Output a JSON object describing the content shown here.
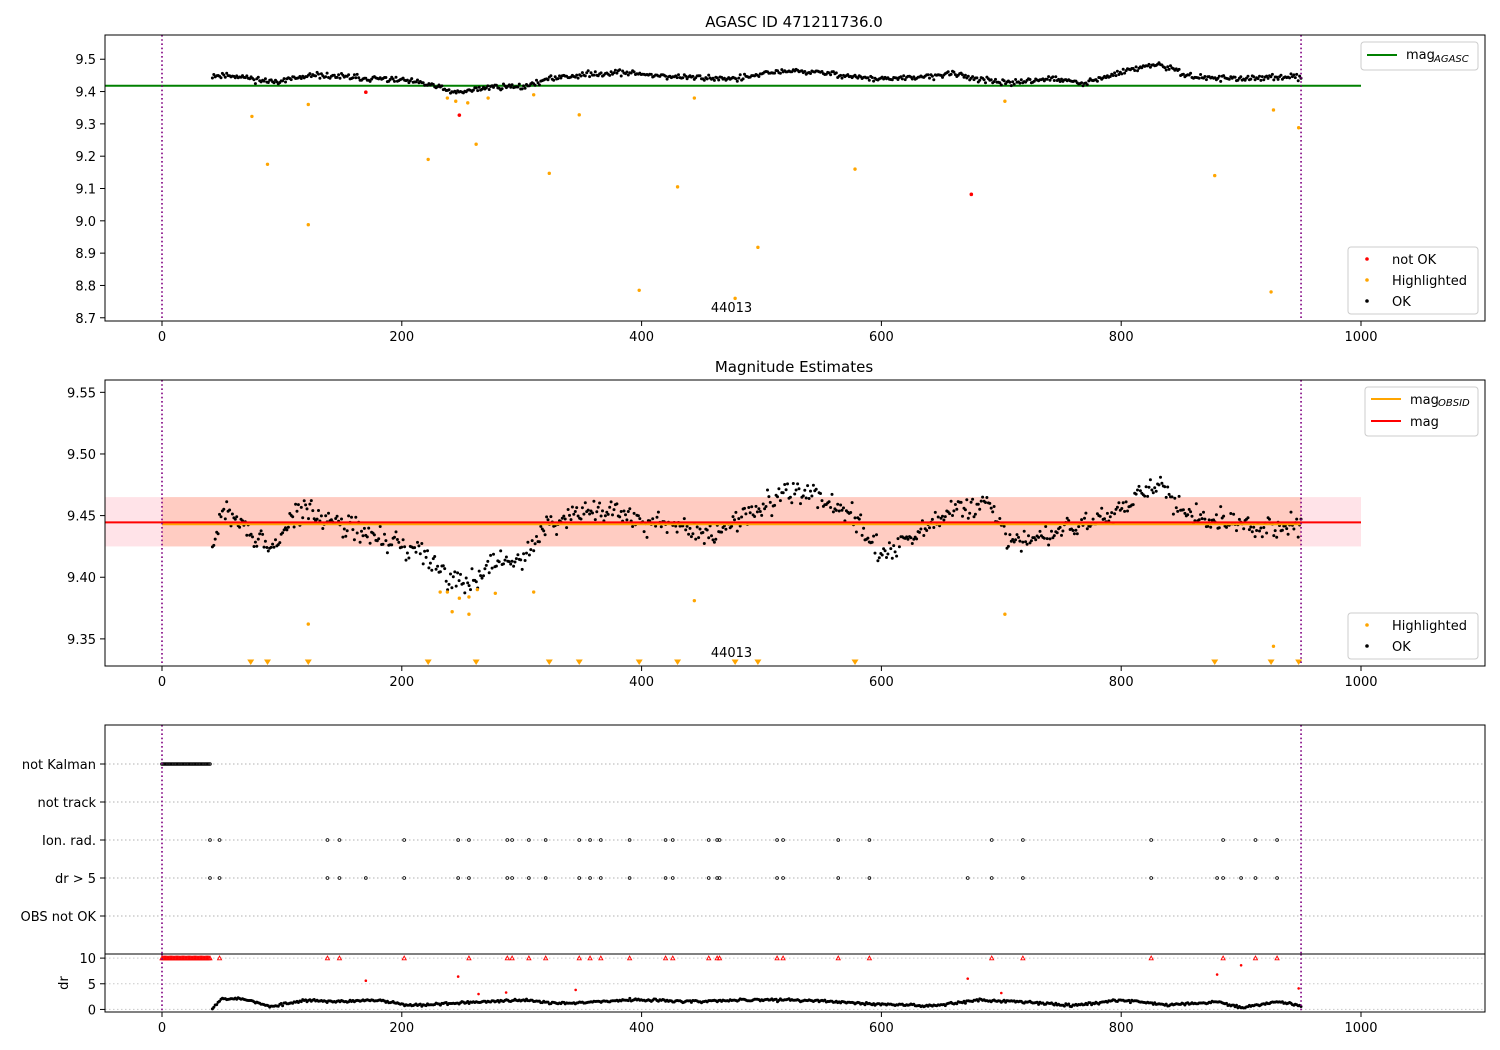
{
  "figure": {
    "title": "AGASC ID 471211736.0"
  },
  "chart_data": [
    {
      "id": "top",
      "type": "scatter",
      "title": "AGASC ID 471211736.0",
      "xlim": [
        -47,
        1010
      ],
      "ylim": [
        8.69,
        9.575
      ],
      "xticks": [
        0,
        200,
        400,
        600,
        800,
        1000
      ],
      "yticks": [
        8.7,
        8.8,
        8.9,
        9.0,
        9.1,
        9.2,
        9.3,
        9.4,
        9.5
      ],
      "ytick_labels": [
        "8.7",
        "8.8",
        "8.9",
        "9.0",
        "9.1",
        "9.2",
        "9.3",
        "9.4",
        "9.5"
      ],
      "obsid_label": "44013",
      "obsid_label_x": 475,
      "vlines_x": [
        0,
        950
      ],
      "reference_line": {
        "name": "mag_AGASC",
        "y": 9.418,
        "x_range": [
          -47,
          1000
        ],
        "color": "#008000"
      },
      "legend_upper": [
        {
          "label": "mag",
          "subscript": "AGASC",
          "color": "#008000"
        }
      ],
      "legend_lower": [
        {
          "label": "not OK",
          "color": "#ff0000"
        },
        {
          "label": "Highlighted",
          "color": "#ffa500"
        },
        {
          "label": "OK",
          "color": "#000000"
        }
      ],
      "ok_profile": {
        "x_range": [
          42,
          950
        ],
        "anchors": [
          [
            42,
            9.45
          ],
          [
            60,
            9.45
          ],
          [
            90,
            9.43
          ],
          [
            130,
            9.45
          ],
          [
            200,
            9.435
          ],
          [
            225,
            9.42
          ],
          [
            245,
            9.395
          ],
          [
            275,
            9.415
          ],
          [
            300,
            9.415
          ],
          [
            330,
            9.445
          ],
          [
            380,
            9.46
          ],
          [
            430,
            9.445
          ],
          [
            480,
            9.44
          ],
          [
            520,
            9.465
          ],
          [
            560,
            9.455
          ],
          [
            590,
            9.44
          ],
          [
            620,
            9.44
          ],
          [
            660,
            9.455
          ],
          [
            700,
            9.425
          ],
          [
            740,
            9.44
          ],
          [
            770,
            9.425
          ],
          [
            810,
            9.47
          ],
          [
            830,
            9.485
          ],
          [
            860,
            9.445
          ],
          [
            900,
            9.44
          ],
          [
            950,
            9.445
          ]
        ],
        "noise": 0.016,
        "count": 760,
        "color": "#000000"
      },
      "highlighted_points": [
        [
          75,
          9.323
        ],
        [
          88,
          9.175
        ],
        [
          122,
          9.36
        ],
        [
          122,
          8.988
        ],
        [
          222,
          9.19
        ],
        [
          238,
          9.38
        ],
        [
          245,
          9.37
        ],
        [
          255,
          9.365
        ],
        [
          262,
          9.237
        ],
        [
          272,
          9.38
        ],
        [
          310,
          9.39
        ],
        [
          323,
          9.147
        ],
        [
          348,
          9.328
        ],
        [
          398,
          8.785
        ],
        [
          430,
          9.105
        ],
        [
          444,
          9.38
        ],
        [
          478,
          8.76
        ],
        [
          497,
          8.918
        ],
        [
          578,
          9.16
        ],
        [
          703,
          9.37
        ],
        [
          878,
          9.14
        ],
        [
          925,
          8.78
        ],
        [
          927,
          9.343
        ],
        [
          948,
          9.288
        ]
      ],
      "not_ok_points": [
        [
          170,
          9.398
        ],
        [
          248,
          9.327
        ],
        [
          675,
          9.082
        ]
      ]
    },
    {
      "id": "mid",
      "type": "scatter",
      "title": "Magnitude Estimates",
      "xlim": [
        -47,
        1010
      ],
      "ylim": [
        9.328,
        9.56
      ],
      "xticks": [
        0,
        200,
        400,
        600,
        800,
        1000
      ],
      "yticks": [
        9.35,
        9.4,
        9.45,
        9.5,
        9.55
      ],
      "ytick_labels": [
        "9.35",
        "9.40",
        "9.45",
        "9.50",
        "9.55"
      ],
      "obsid_label": "44013",
      "obsid_label_x": 475,
      "vlines_x": [
        0,
        950
      ],
      "mag_line": {
        "y": 9.4445,
        "color": "#ff0000"
      },
      "mag_band": {
        "y": [
          9.425,
          9.465
        ],
        "x_range": [
          -47,
          1000
        ],
        "color": "#ffc0cb"
      },
      "mag_obsid_line": {
        "y": 9.443,
        "x_range": [
          0,
          950
        ],
        "color": "#ffa500"
      },
      "mag_obsid_band": {
        "y": [
          9.425,
          9.465
        ],
        "x_range": [
          0,
          950
        ],
        "color": "#ffa07a"
      },
      "legend_upper": [
        {
          "label": "mag",
          "subscript": "OBSID",
          "color": "#ffa500"
        },
        {
          "label": "mag",
          "subscript": "",
          "color": "#ff0000"
        }
      ],
      "legend_lower": [
        {
          "label": "Highlighted",
          "color": "#ffa500"
        },
        {
          "label": "OK",
          "color": "#000000"
        }
      ],
      "ok_profile": {
        "x_range": [
          42,
          950
        ],
        "anchors": [
          [
            42,
            9.42
          ],
          [
            50,
            9.455
          ],
          [
            70,
            9.44
          ],
          [
            90,
            9.42
          ],
          [
            110,
            9.45
          ],
          [
            125,
            9.455
          ],
          [
            145,
            9.445
          ],
          [
            170,
            9.435
          ],
          [
            200,
            9.425
          ],
          [
            220,
            9.42
          ],
          [
            240,
            9.4
          ],
          [
            255,
            9.395
          ],
          [
            275,
            9.41
          ],
          [
            300,
            9.415
          ],
          [
            320,
            9.44
          ],
          [
            345,
            9.455
          ],
          [
            370,
            9.455
          ],
          [
            400,
            9.445
          ],
          [
            430,
            9.44
          ],
          [
            460,
            9.435
          ],
          [
            480,
            9.445
          ],
          [
            520,
            9.47
          ],
          [
            550,
            9.465
          ],
          [
            575,
            9.45
          ],
          [
            600,
            9.42
          ],
          [
            625,
            9.43
          ],
          [
            660,
            9.455
          ],
          [
            690,
            9.46
          ],
          [
            705,
            9.43
          ],
          [
            730,
            9.43
          ],
          [
            760,
            9.44
          ],
          [
            800,
            9.455
          ],
          [
            830,
            9.475
          ],
          [
            850,
            9.455
          ],
          [
            880,
            9.445
          ],
          [
            920,
            9.44
          ],
          [
            950,
            9.445
          ]
        ],
        "noise": 0.017,
        "count": 760,
        "color": "#000000"
      },
      "highlighted_points": [
        [
          232,
          9.388
        ],
        [
          238,
          9.388
        ],
        [
          242,
          9.372
        ],
        [
          248,
          9.383
        ],
        [
          256,
          9.384
        ],
        [
          256,
          9.37
        ],
        [
          263,
          9.39
        ],
        [
          278,
          9.387
        ],
        [
          310,
          9.388
        ],
        [
          122,
          9.362
        ],
        [
          444,
          9.381
        ],
        [
          703,
          9.37
        ],
        [
          927,
          9.344
        ]
      ],
      "triangle_markers_x": [
        74,
        88,
        122,
        222,
        262,
        323,
        348,
        398,
        430,
        478,
        497,
        578,
        878,
        925,
        948
      ]
    },
    {
      "id": "flags",
      "type": "scatter",
      "xlim": [
        -47,
        1100
      ],
      "categories": [
        "not Kalman",
        "not track",
        "Ion. rad.",
        "dr > 5",
        "OBS not OK"
      ],
      "not_kalman_x_range": [
        0,
        40
      ],
      "vlines_x": [
        0,
        950
      ],
      "ion_rad_x": [
        40,
        48,
        138,
        148,
        202,
        247,
        256,
        288,
        292,
        306,
        320,
        348,
        357,
        366,
        390,
        420,
        426,
        456,
        463,
        465,
        513,
        518,
        564,
        590,
        692,
        718,
        825,
        885,
        912,
        930
      ],
      "dr_gt5_x": [
        40,
        48,
        138,
        148,
        170,
        202,
        247,
        256,
        288,
        292,
        306,
        320,
        348,
        357,
        366,
        390,
        420,
        426,
        456,
        463,
        465,
        513,
        518,
        564,
        590,
        672,
        692,
        718,
        825,
        880,
        885,
        900,
        912,
        930
      ]
    },
    {
      "id": "dr",
      "type": "scatter",
      "ylabel": "dr",
      "xlim": [
        -47,
        1100
      ],
      "ylim": [
        -0.5,
        10.8
      ],
      "xticks": [
        0,
        200,
        400,
        600,
        800,
        1000
      ],
      "yticks": [
        0,
        5,
        10
      ],
      "ytick_labels": [
        "0",
        "5",
        "10"
      ],
      "vlines_x": [
        0,
        950
      ],
      "red_capped_x_range": [
        0,
        40
      ],
      "red_capped_x": [
        48,
        138,
        148,
        202,
        256,
        288,
        292,
        306,
        320,
        348,
        357,
        366,
        390,
        420,
        426,
        456,
        463,
        465,
        513,
        518,
        564,
        590,
        692,
        718,
        825,
        885,
        912,
        930
      ],
      "red_points": [
        [
          170,
          5.6
        ],
        [
          247,
          6.4
        ],
        [
          264,
          3.0
        ],
        [
          287,
          3.3
        ],
        [
          345,
          3.8
        ],
        [
          672,
          6.0
        ],
        [
          700,
          3.2
        ],
        [
          880,
          6.8
        ],
        [
          900,
          8.6
        ],
        [
          948,
          4.1
        ]
      ],
      "black_profile": {
        "x_range": [
          42,
          950
        ],
        "anchors": [
          [
            42,
            0.3
          ],
          [
            50,
            2.2
          ],
          [
            70,
            2.0
          ],
          [
            90,
            0.5
          ],
          [
            120,
            1.8
          ],
          [
            150,
            1.5
          ],
          [
            180,
            1.8
          ],
          [
            210,
            0.8
          ],
          [
            240,
            1.2
          ],
          [
            270,
            1.5
          ],
          [
            300,
            1.8
          ],
          [
            330,
            1.2
          ],
          [
            360,
            1.5
          ],
          [
            400,
            1.9
          ],
          [
            440,
            1.5
          ],
          [
            480,
            1.8
          ],
          [
            520,
            1.9
          ],
          [
            560,
            1.5
          ],
          [
            600,
            1.0
          ],
          [
            640,
            0.7
          ],
          [
            680,
            1.8
          ],
          [
            720,
            1.5
          ],
          [
            760,
            0.8
          ],
          [
            800,
            1.8
          ],
          [
            840,
            0.9
          ],
          [
            880,
            1.5
          ],
          [
            900,
            0.4
          ],
          [
            930,
            1.5
          ],
          [
            950,
            0.8
          ]
        ],
        "noise": 0.45,
        "count": 760
      }
    }
  ]
}
